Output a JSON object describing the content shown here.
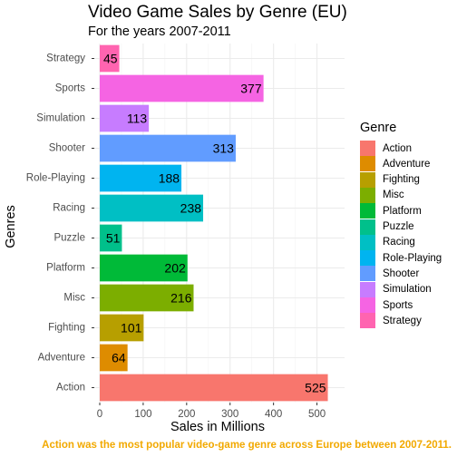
{
  "chart_data": {
    "type": "bar",
    "orientation": "horizontal",
    "title": "Video Game Sales by Genre (EU)",
    "subtitle": "For the years 2007-2011",
    "xlabel": "Sales in Millions",
    "ylabel": "Genres",
    "caption": "Action was the most popular video-game genre across Europe between 2007-2011.",
    "xlim": [
      0,
      551
    ],
    "xticks": [
      0,
      100,
      200,
      300,
      400,
      500
    ],
    "xtick_labels": [
      "0",
      "100",
      "200",
      "300",
      "400",
      "500"
    ],
    "grid": true,
    "legend_title": "Genre",
    "legend_position": "right",
    "categories": [
      "Action",
      "Adventure",
      "Fighting",
      "Misc",
      "Platform",
      "Puzzle",
      "Racing",
      "Role-Playing",
      "Shooter",
      "Simulation",
      "Sports",
      "Strategy"
    ],
    "values": [
      525,
      64,
      101,
      216,
      202,
      51,
      238,
      188,
      313,
      113,
      377,
      45
    ],
    "value_labels": [
      "525",
      "64",
      "101",
      "216",
      "202",
      "51",
      "238",
      "188",
      "313",
      "113",
      "377",
      "45"
    ],
    "colors": [
      "#F8766D",
      "#DE8C00",
      "#B79F00",
      "#7CAE00",
      "#00BA38",
      "#00C08B",
      "#00BFC4",
      "#00B4F0",
      "#619CFF",
      "#C77CFF",
      "#F564E3",
      "#FF64B0"
    ]
  }
}
